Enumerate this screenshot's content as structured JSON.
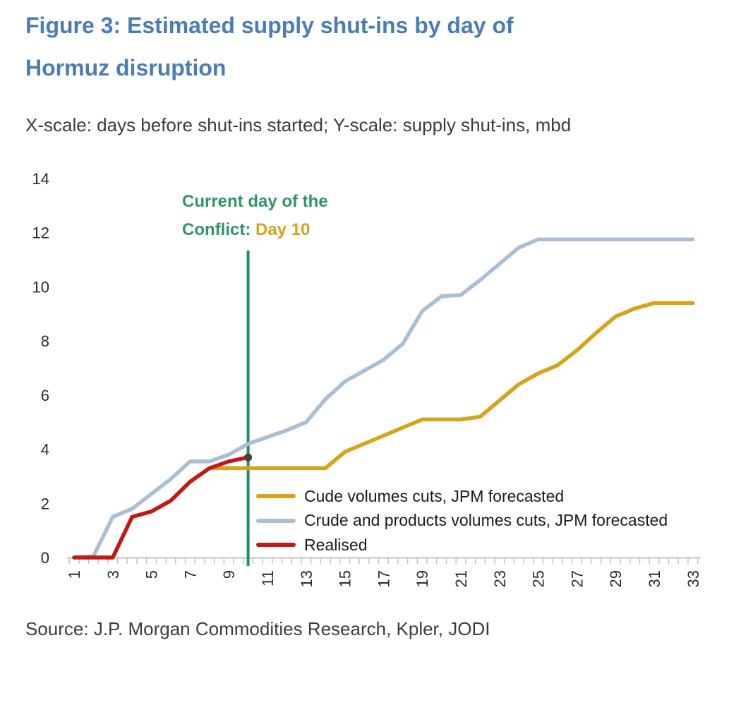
{
  "figure": {
    "title_line1": "Figure 3: Estimated supply shut-ins by day of",
    "title_line2": "Hormuz disruption",
    "subtitle": "X-scale: days before shut-ins started; Y-scale: supply shut-ins, mbd",
    "source": "Source: J.P. Morgan Commodities Research, Kpler, JODI",
    "title_color": "#4a7db7"
  },
  "annotation": {
    "line1": "Current day of the",
    "line2_prefix": "Conflict: ",
    "line2_highlight": "Day 10",
    "text_color": "#2e9566",
    "highlight_color": "#d4a41c"
  },
  "chart_data": {
    "type": "line",
    "x": [
      1,
      2,
      3,
      4,
      5,
      6,
      7,
      8,
      9,
      10,
      11,
      12,
      13,
      14,
      15,
      16,
      17,
      18,
      19,
      20,
      21,
      22,
      23,
      24,
      25,
      26,
      27,
      28,
      29,
      30,
      31,
      32,
      33
    ],
    "series": [
      {
        "name": "Cude volumes cuts, JPM forecasted",
        "color": "#d4a41c",
        "values": [
          0,
          0,
          0,
          1.5,
          1.7,
          2.1,
          2.8,
          3.3,
          3.3,
          3.3,
          3.3,
          3.3,
          3.3,
          3.3,
          3.9,
          4.2,
          4.5,
          4.8,
          5.1,
          5.1,
          5.1,
          5.2,
          5.8,
          6.4,
          6.8,
          7.1,
          7.65,
          8.3,
          8.9,
          9.2,
          9.4,
          9.4,
          9.4
        ]
      },
      {
        "name": "Crude and products volumes cuts, JPM forecasted",
        "color": "#aabfd4",
        "values": [
          0,
          0.05,
          1.5,
          1.8,
          2.35,
          2.9,
          3.55,
          3.55,
          3.8,
          4.2,
          4.45,
          4.7,
          5.0,
          5.85,
          6.5,
          6.9,
          7.3,
          7.9,
          9.1,
          9.65,
          9.7,
          10.25,
          10.85,
          11.45,
          11.75,
          11.75,
          11.75,
          11.75,
          11.75,
          11.75,
          11.75,
          11.75,
          11.75
        ]
      },
      {
        "name": "Realised",
        "color": "#c01a15",
        "values": [
          0,
          0,
          0,
          1.5,
          1.7,
          2.1,
          2.8,
          3.3,
          3.55,
          3.7,
          null,
          null,
          null,
          null,
          null,
          null,
          null,
          null,
          null,
          null,
          null,
          null,
          null,
          null,
          null,
          null,
          null,
          null,
          null,
          null,
          null,
          null,
          null
        ],
        "end_marker": true
      }
    ],
    "vline": {
      "x": 10,
      "color": "#1e8f5e",
      "label": "Current day of the Conflict: Day 10"
    },
    "xticks": [
      1,
      3,
      5,
      7,
      9,
      11,
      13,
      15,
      17,
      19,
      21,
      23,
      25,
      27,
      29,
      31,
      33
    ],
    "yticks": [
      0,
      2,
      4,
      6,
      8,
      10,
      12,
      14
    ],
    "xlim": [
      1,
      33
    ],
    "ylim": [
      0,
      14
    ],
    "grid": false,
    "legend_position": "inside-bottom-right",
    "colors": {
      "axis": "#c4c4c4",
      "tick_text": "#2b2b2b",
      "marker": "#4a3f30"
    }
  }
}
